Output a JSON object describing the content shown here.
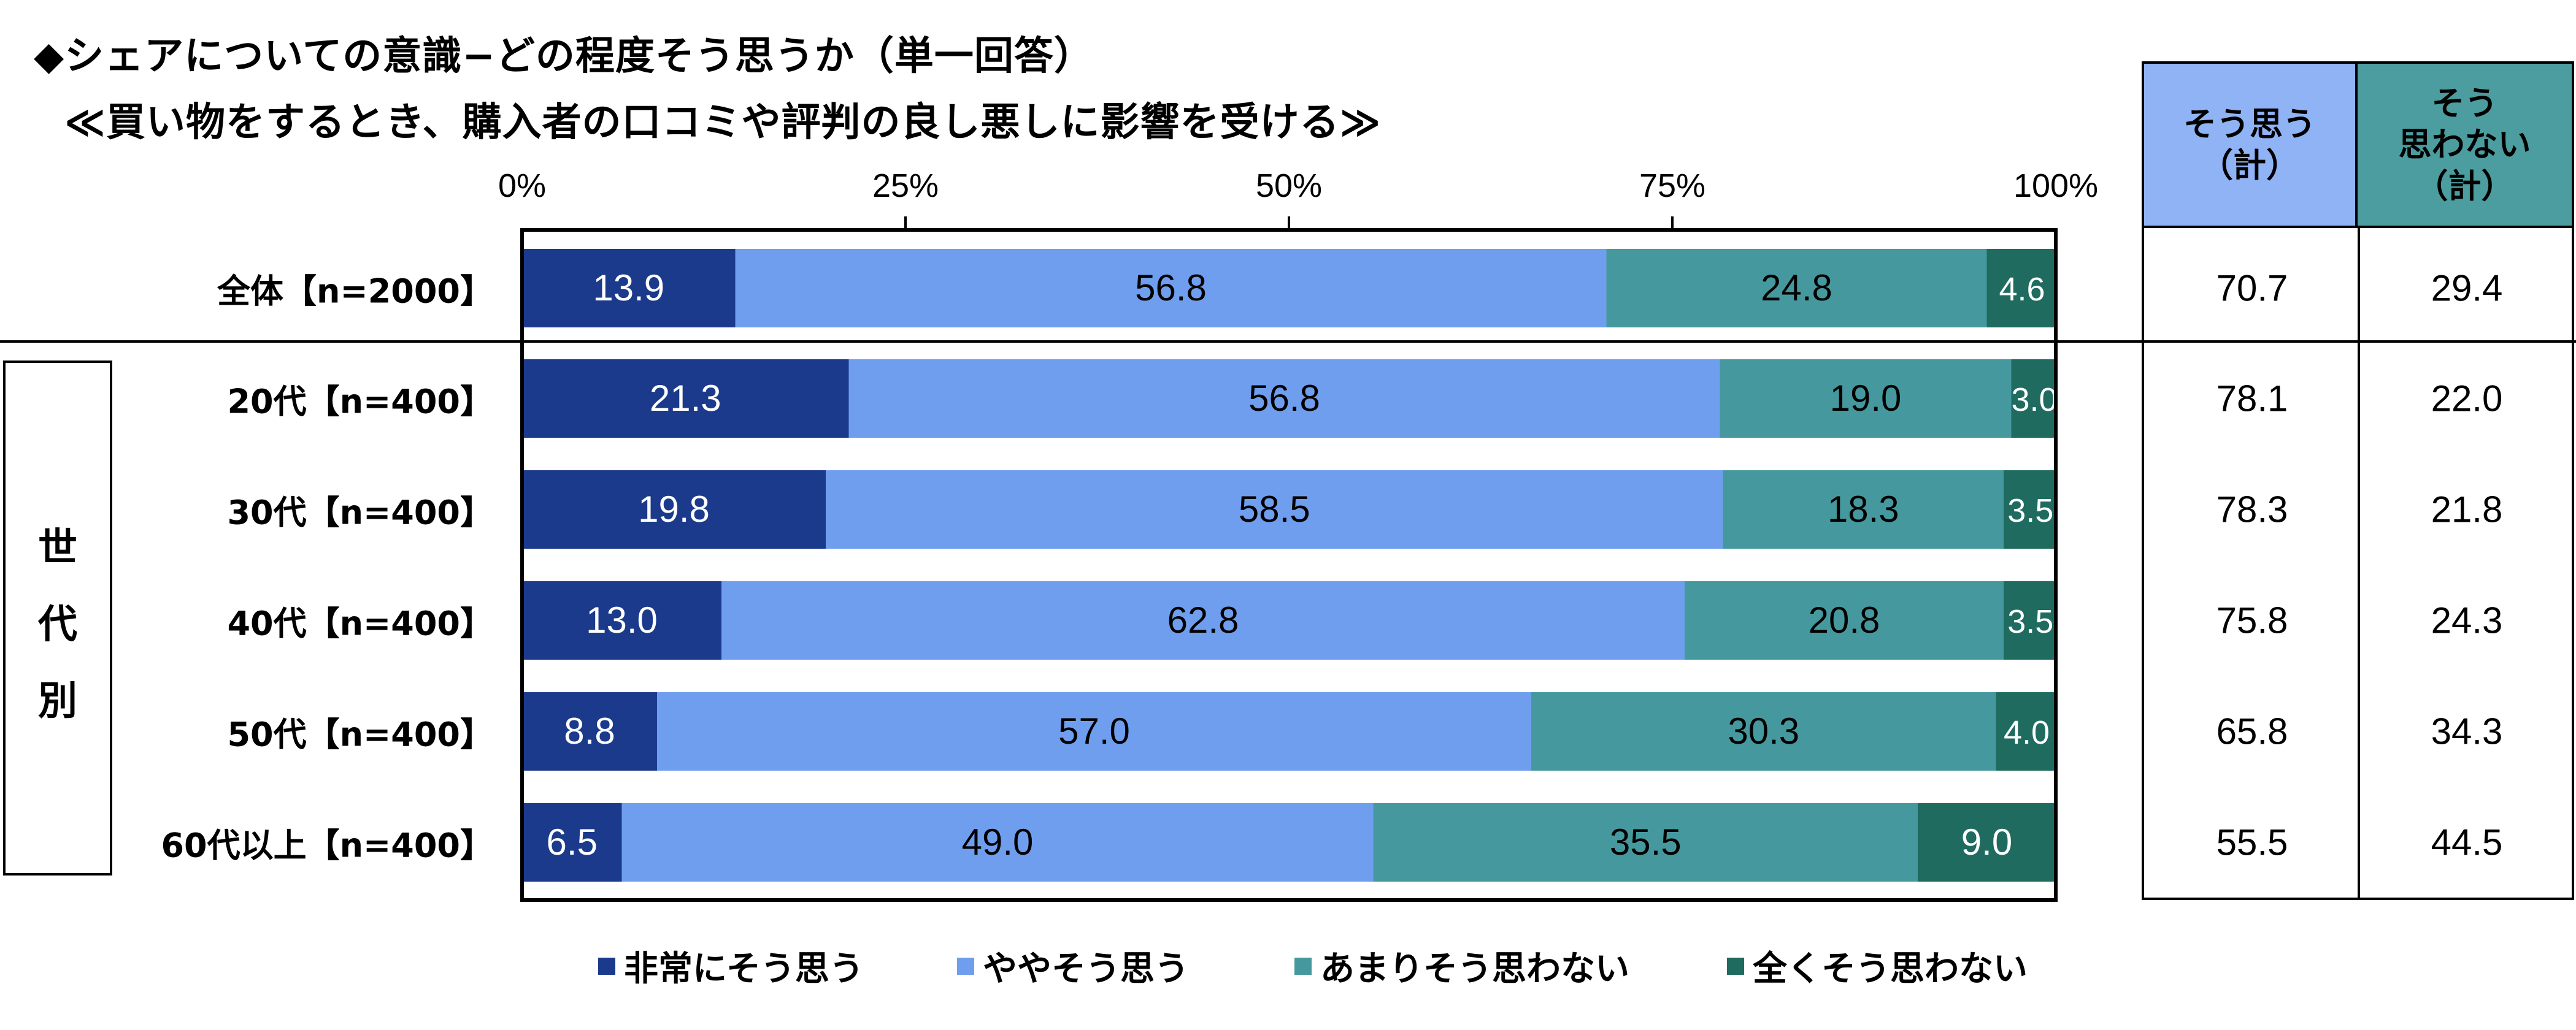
{
  "title_line1": "◆シェアについての意識−どの程度そう思うか（単一回答）",
  "title_line2": "≪買い物をするとき、購入者の口コミや評判の良し悪しに影響を受ける≫",
  "group_label": [
    "世",
    "代",
    "別"
  ],
  "summary_headers": {
    "agree": [
      "そう思う",
      "（計）"
    ],
    "disagree": [
      "そう",
      "思わない",
      "（計）"
    ]
  },
  "header_colors": {
    "agree": "#8FB3F5",
    "disagree": "#4B9DA0"
  },
  "chart_data": {
    "type": "bar",
    "orientation": "horizontal-stacked-100",
    "xlim": [
      0,
      100
    ],
    "ticks": [
      "0%",
      "25%",
      "50%",
      "75%",
      "100%"
    ],
    "categories": [
      "全体【n=2000】",
      "20代【n=400】",
      "30代【n=400】",
      "40代【n=400】",
      "50代【n=400】",
      "60代以上【n=400】"
    ],
    "series": [
      {
        "name": "非常にそう思う",
        "color": "#1B3A8C",
        "text_color": "#ffffff",
        "values": [
          13.9,
          21.3,
          19.8,
          13.0,
          8.8,
          6.5
        ]
      },
      {
        "name": "ややそう思う",
        "color": "#6F9EEE",
        "text_color": "#000000",
        "values": [
          56.8,
          56.8,
          58.5,
          62.8,
          57.0,
          49.0
        ]
      },
      {
        "name": "あまりそう思わない",
        "color": "#45999E",
        "text_color": "#000000",
        "values": [
          24.8,
          19.0,
          18.3,
          20.8,
          30.3,
          35.5
        ]
      },
      {
        "name": "全くそう思わない",
        "color": "#1F6B60",
        "text_color": "#ffffff",
        "values": [
          4.6,
          3.0,
          3.5,
          3.5,
          4.0,
          9.0
        ]
      }
    ],
    "labels": [
      [
        "13.9",
        "56.8",
        "24.8",
        "4.6"
      ],
      [
        "21.3",
        "56.8",
        "19.0",
        "3.0"
      ],
      [
        "19.8",
        "58.5",
        "18.3",
        "3.5"
      ],
      [
        "13.0",
        "62.8",
        "20.8",
        "3.5"
      ],
      [
        "8.8",
        "57.0",
        "30.3",
        "4.0"
      ],
      [
        "6.5",
        "49.0",
        "35.5",
        "9.0"
      ]
    ],
    "summary": {
      "agree": [
        "70.7",
        "78.1",
        "78.3",
        "75.8",
        "65.8",
        "55.5"
      ],
      "disagree": [
        "29.4",
        "22.0",
        "21.8",
        "24.3",
        "34.3",
        "44.5"
      ]
    }
  }
}
